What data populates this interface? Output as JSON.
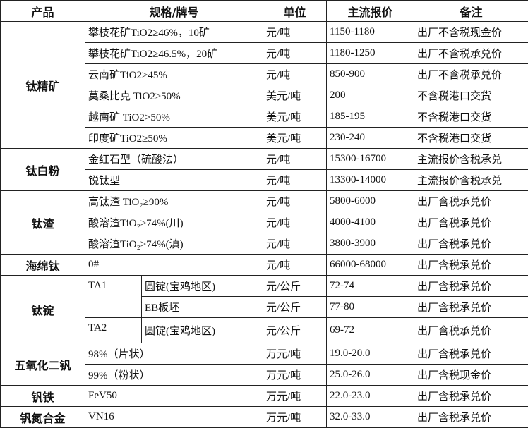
{
  "header": {
    "product": "产品",
    "spec": "规格/牌号",
    "unit": "单位",
    "price": "主流报价",
    "note": "备注"
  },
  "groups": [
    {
      "product": "钛精矿",
      "rows": [
        {
          "spec": "攀枝花矿TiO2≥46%，10矿",
          "unit": "元/吨",
          "price": "1150-1180",
          "note": "出厂不含税现金价"
        },
        {
          "spec": "攀枝花矿TiO2≥46.5%，20矿",
          "unit": "元/吨",
          "price": "1180-1250",
          "note": "出厂不含税承兑价"
        },
        {
          "spec": "云南矿TiO2≥45%",
          "unit": "元/吨",
          "price": "850-900",
          "note": "出厂不含税承兑价"
        },
        {
          "spec": "莫桑比克 TiO2≥50%",
          "unit": "美元/吨",
          "price": "200",
          "note": "不含税港口交货"
        },
        {
          "spec": "越南矿 TiO2>50%",
          "unit": "美元/吨",
          "price": "185-195",
          "note": "不含税港口交货"
        },
        {
          "spec": "印度矿TiO2≥50%",
          "unit": "美元/吨",
          "price": "230-240",
          "note": "不含税港口交货"
        }
      ]
    },
    {
      "product": "钛白粉",
      "rows": [
        {
          "spec": "金红石型（硫酸法）",
          "unit": "元/吨",
          "price": "15300-16700",
          "note": "主流报价含税承兑"
        },
        {
          "spec": "锐钛型",
          "unit": "元/吨",
          "price": "13300-14000",
          "note": "主流报价含税承兑"
        }
      ]
    },
    {
      "product": "钛渣",
      "rows": [
        {
          "spec": "高钛渣 TiO₂≥90%",
          "unit": "元/吨",
          "price": "5800-6000",
          "note": "出厂含税承兑价"
        },
        {
          "spec": "酸溶渣TiO₂≥74%(川)",
          "unit": "元/吨",
          "price": "4000-4100",
          "note": "出厂含税承兑价"
        },
        {
          "spec": "酸溶渣TiO₂≥74%(滇)",
          "unit": "元/吨",
          "price": "3800-3900",
          "note": "出厂含税承兑价"
        }
      ]
    },
    {
      "product": "海绵钛",
      "rows": [
        {
          "spec": "0#",
          "unit": "元/吨",
          "price": "66000-68000",
          "note": "出厂含税承兑价"
        }
      ]
    },
    {
      "product": "钛锭",
      "rows": [
        {
          "grade": "TA1",
          "grade_span": 2,
          "form": "圆锭(宝鸡地区)",
          "unit": "元/公斤",
          "price": "72-74",
          "note": "出厂含税承兑价"
        },
        {
          "form": "EB板坯",
          "unit": "元/公斤",
          "price": "77-80",
          "note": "出厂含税承兑价"
        },
        {
          "grade": "TA2",
          "grade_span": 1,
          "form": "圆锭(宝鸡地区)",
          "unit": "元/公斤",
          "price": "69-72",
          "note": "出厂含税承兑价"
        }
      ]
    },
    {
      "product": "五氧化二钒",
      "rows": [
        {
          "spec": "98%（片状）",
          "unit": "万元/吨",
          "price": "19.0-20.0",
          "note": "出厂含税承兑价"
        },
        {
          "spec": "99%（粉状）",
          "unit": "万元/吨",
          "price": "25.0-26.0",
          "note": "出厂含税现金价"
        }
      ]
    },
    {
      "product": "钒铁",
      "rows": [
        {
          "spec": "FeV50",
          "unit": "万元/吨",
          "price": "22.0-23.0",
          "note": "出厂含税承兑价"
        }
      ]
    },
    {
      "product": "钒氮合金",
      "rows": [
        {
          "spec": "VN16",
          "unit": "万元/吨",
          "price": "32.0-33.0",
          "note": "出厂含税承兑价"
        }
      ]
    }
  ]
}
